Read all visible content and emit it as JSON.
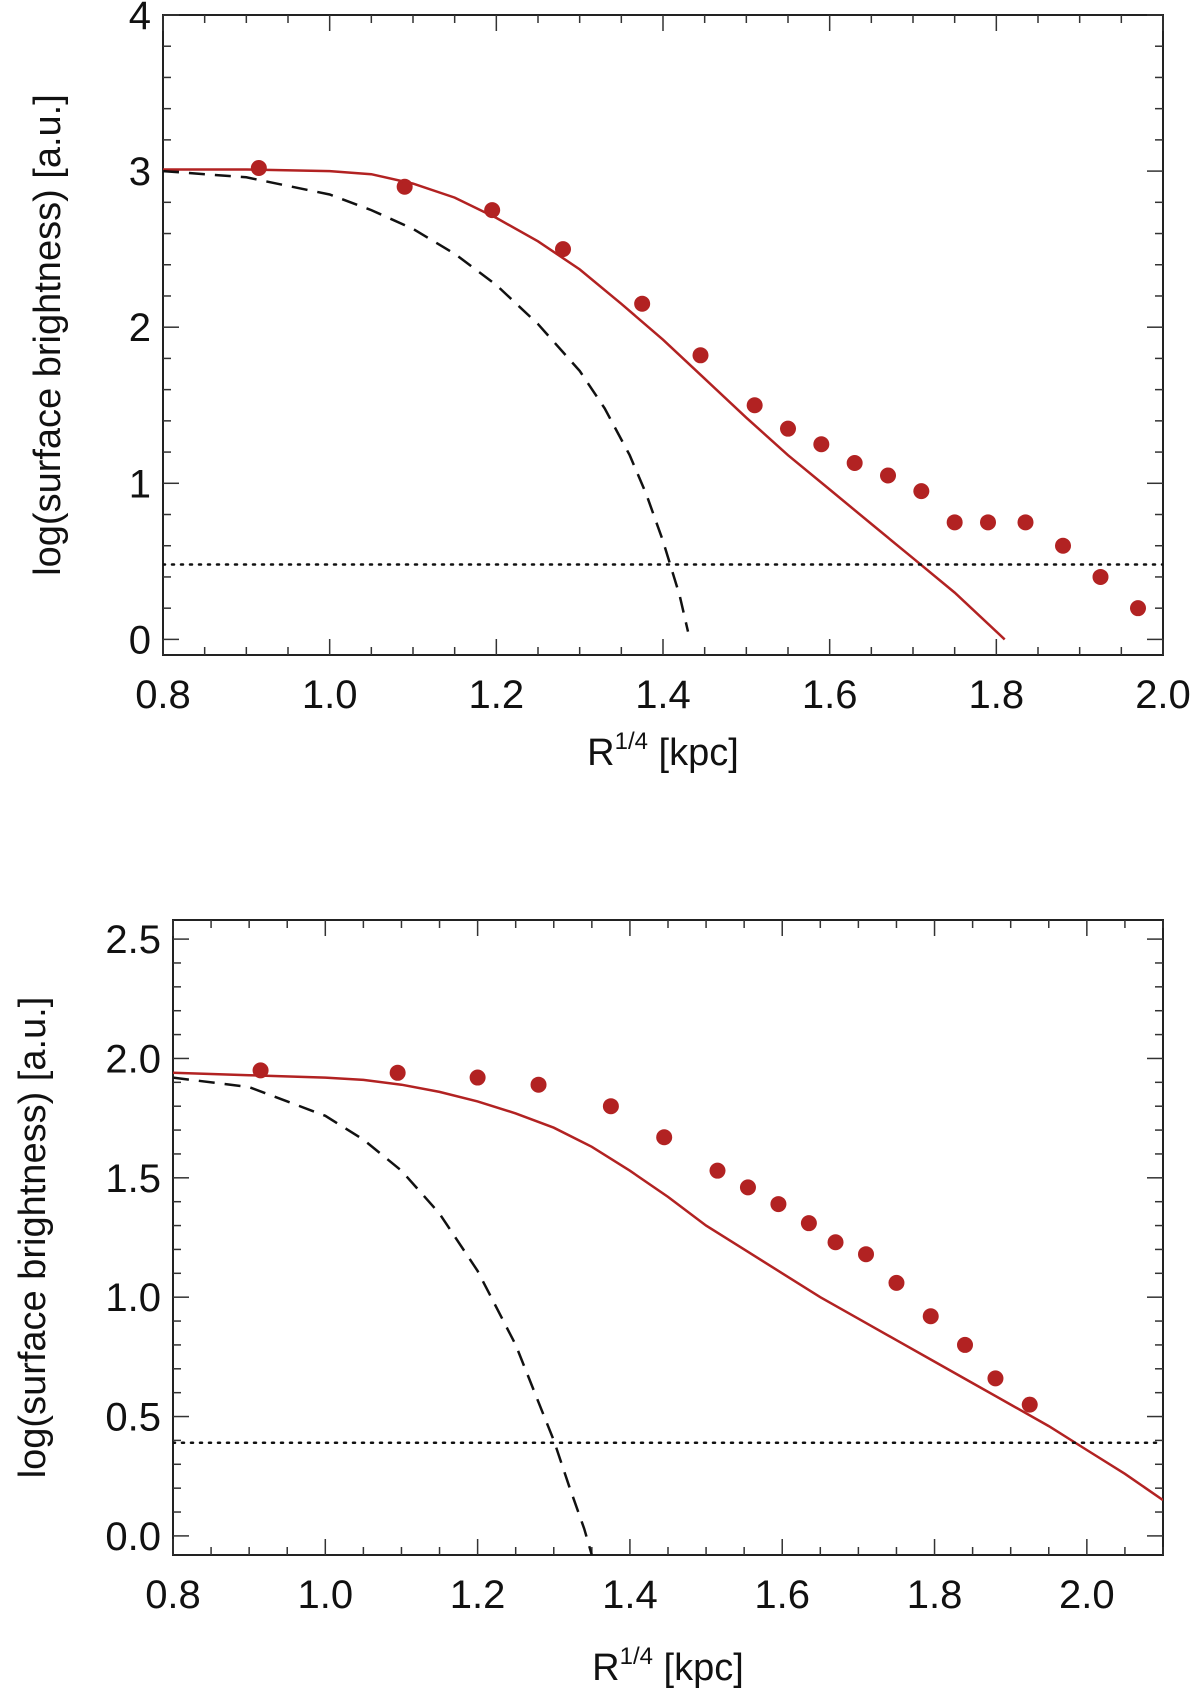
{
  "colors": {
    "data": "#b22222",
    "model": "#b22222",
    "bulge": "#111111",
    "limit": "#111111"
  },
  "chart_data": [
    {
      "type": "scatter",
      "xlabel": "R",
      "xlabel_sup": "1/4",
      "xlabel_unit": "[kpc]",
      "ylabel": "log(surface brightness) [a.u.]",
      "xlim": [
        0.8,
        2.0
      ],
      "ylim": [
        -0.1,
        4.0
      ],
      "xticks": [
        0.8,
        1.0,
        1.2,
        1.4,
        1.6,
        1.8,
        2.0
      ],
      "xtick_labels": [
        "0.8",
        "1.0",
        "1.2",
        "1.4",
        "1.6",
        "1.8",
        "2.0"
      ],
      "yticks": [
        0,
        1,
        2,
        3,
        4
      ],
      "ytick_labels": [
        "0",
        "1",
        "2",
        "3",
        "4"
      ],
      "grid": false,
      "series": [
        {
          "kind": "points",
          "x": [
            0.915,
            1.09,
            1.195,
            1.28,
            1.375,
            1.445,
            1.51,
            1.55,
            1.59,
            1.63,
            1.67,
            1.71,
            1.75,
            1.79,
            1.835,
            1.88,
            1.925,
            1.97
          ],
          "y": [
            3.02,
            2.9,
            2.75,
            2.5,
            2.15,
            1.82,
            1.5,
            1.35,
            1.25,
            1.13,
            1.05,
            0.95,
            0.75,
            0.75,
            0.75,
            0.6,
            0.4,
            0.2
          ]
        },
        {
          "kind": "solid-line",
          "x": [
            0.8,
            0.9,
            1.0,
            1.05,
            1.1,
            1.15,
            1.2,
            1.25,
            1.3,
            1.35,
            1.4,
            1.45,
            1.5,
            1.55,
            1.6,
            1.65,
            1.7,
            1.75,
            1.81
          ],
          "y": [
            3.01,
            3.01,
            3.0,
            2.98,
            2.92,
            2.83,
            2.7,
            2.55,
            2.37,
            2.15,
            1.92,
            1.67,
            1.42,
            1.18,
            0.96,
            0.74,
            0.52,
            0.3,
            0.0
          ]
        },
        {
          "kind": "dashed-line",
          "x": [
            0.8,
            0.9,
            1.0,
            1.05,
            1.1,
            1.15,
            1.2,
            1.25,
            1.3,
            1.33,
            1.36,
            1.38,
            1.4,
            1.42,
            1.43
          ],
          "y": [
            3.0,
            2.96,
            2.85,
            2.75,
            2.63,
            2.47,
            2.27,
            2.02,
            1.72,
            1.48,
            1.18,
            0.93,
            0.63,
            0.28,
            0.05
          ]
        },
        {
          "kind": "dotted-line",
          "x": [
            0.8,
            2.0
          ],
          "y": [
            0.48,
            0.48
          ]
        }
      ]
    },
    {
      "type": "scatter",
      "xlabel": "R",
      "xlabel_sup": "1/4",
      "xlabel_unit": "[kpc]",
      "ylabel": "log(surface brightness) [a.u.]",
      "xlim": [
        0.8,
        2.1
      ],
      "ylim": [
        -0.08,
        2.58
      ],
      "xticks": [
        0.8,
        1.0,
        1.2,
        1.4,
        1.6,
        1.8,
        2.0
      ],
      "xtick_labels": [
        "0.8",
        "1.0",
        "1.2",
        "1.4",
        "1.6",
        "1.8",
        "2.0"
      ],
      "yticks": [
        0.0,
        0.5,
        1.0,
        1.5,
        2.0,
        2.5
      ],
      "ytick_labels": [
        "0.0",
        "0.5",
        "1.0",
        "1.5",
        "2.0",
        "2.5"
      ],
      "grid": false,
      "series": [
        {
          "kind": "points",
          "x": [
            0.915,
            1.095,
            1.2,
            1.28,
            1.375,
            1.445,
            1.515,
            1.555,
            1.595,
            1.635,
            1.67,
            1.71,
            1.75,
            1.795,
            1.84,
            1.88,
            1.925
          ],
          "y": [
            1.95,
            1.94,
            1.92,
            1.89,
            1.8,
            1.67,
            1.53,
            1.46,
            1.39,
            1.31,
            1.23,
            1.18,
            1.06,
            0.92,
            0.8,
            0.66,
            0.55
          ]
        },
        {
          "kind": "solid-line",
          "x": [
            0.8,
            0.9,
            1.0,
            1.05,
            1.1,
            1.15,
            1.2,
            1.25,
            1.3,
            1.35,
            1.4,
            1.45,
            1.5,
            1.55,
            1.6,
            1.65,
            1.7,
            1.75,
            1.8,
            1.85,
            1.9,
            1.95,
            2.0,
            2.05,
            2.1
          ],
          "y": [
            1.94,
            1.93,
            1.92,
            1.91,
            1.89,
            1.86,
            1.82,
            1.77,
            1.71,
            1.63,
            1.53,
            1.42,
            1.3,
            1.2,
            1.1,
            1.0,
            0.91,
            0.82,
            0.73,
            0.64,
            0.55,
            0.46,
            0.36,
            0.26,
            0.15
          ]
        },
        {
          "kind": "dashed-line",
          "x": [
            0.8,
            0.9,
            1.0,
            1.05,
            1.1,
            1.15,
            1.2,
            1.25,
            1.28,
            1.3,
            1.32,
            1.34,
            1.35
          ],
          "y": [
            1.92,
            1.88,
            1.76,
            1.66,
            1.53,
            1.35,
            1.11,
            0.8,
            0.56,
            0.4,
            0.21,
            0.03,
            -0.08
          ]
        },
        {
          "kind": "dotted-line",
          "x": [
            0.8,
            2.1
          ],
          "y": [
            0.39,
            0.39
          ]
        }
      ]
    }
  ]
}
